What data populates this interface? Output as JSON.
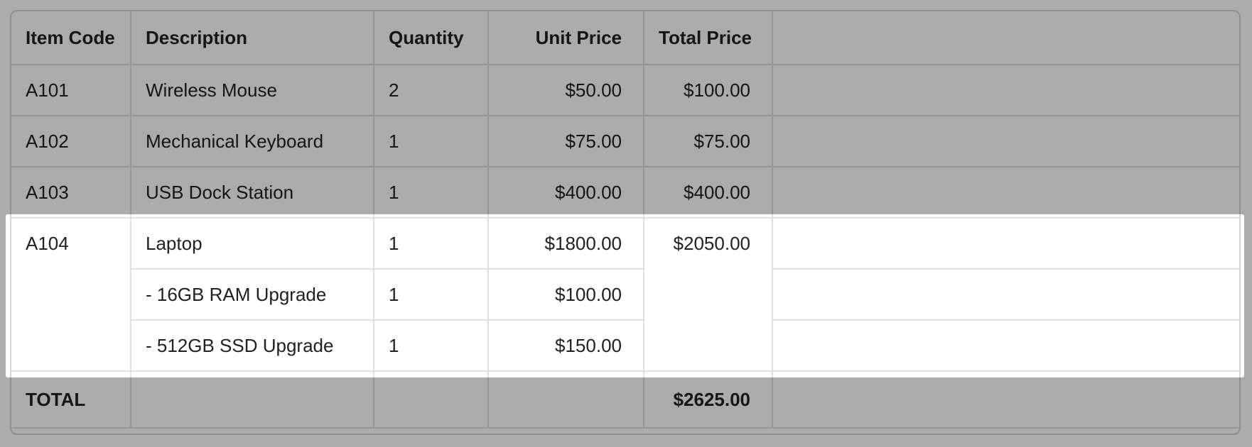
{
  "table": {
    "columns": [
      {
        "label": "Item Code",
        "align": "left"
      },
      {
        "label": "Description",
        "align": "left"
      },
      {
        "label": "Quantity",
        "align": "left"
      },
      {
        "label": "Unit Price",
        "align": "right"
      },
      {
        "label": "Total Price",
        "align": "right"
      },
      {
        "label": "",
        "align": "left"
      }
    ],
    "rows": [
      {
        "item_code": "A101",
        "description": "Wireless Mouse",
        "quantity": "2",
        "unit_price": "$50.00",
        "total_price": "$100.00"
      },
      {
        "item_code": "A102",
        "description": "Mechanical Keyboard",
        "quantity": "1",
        "unit_price": "$75.00",
        "total_price": "$75.00"
      },
      {
        "item_code": "A103",
        "description": "USB Dock Station",
        "quantity": "1",
        "unit_price": "$400.00",
        "total_price": "$400.00"
      }
    ],
    "group": {
      "item_code": "A104",
      "total_price": "$2050.00",
      "lines": [
        {
          "description": "Laptop",
          "quantity": "1",
          "unit_price": "$1800.00"
        },
        {
          "description": "- 16GB RAM Upgrade",
          "quantity": "1",
          "unit_price": "$100.00"
        },
        {
          "description": "- 512GB SSD Upgrade",
          "quantity": "1",
          "unit_price": "$150.00"
        }
      ]
    },
    "footer": {
      "label": "TOTAL",
      "total_price": "$2625.00"
    }
  },
  "annotation": {
    "type": "spotlight-highlight",
    "highlighted_element": "A104 row group",
    "dim_color": "#000000",
    "dim_opacity": 0.33,
    "highlight_bg": "#ffffff"
  },
  "colors": {
    "table_border": "#e0e0e0",
    "card_border": "#d6d6d6",
    "text": "#202124",
    "page_bg": "#ffffff"
  }
}
